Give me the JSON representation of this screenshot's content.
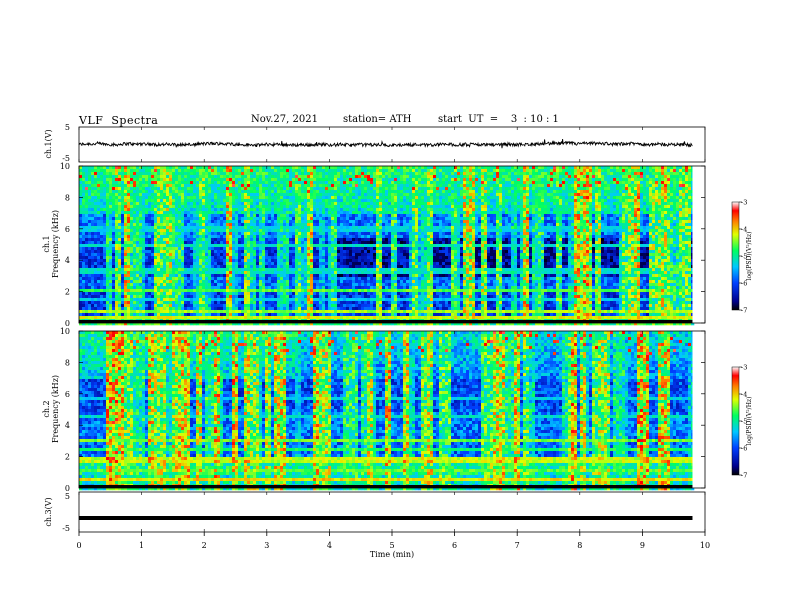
{
  "header": {
    "title": "VLF  Spectra",
    "date": "Nov.27, 2021",
    "station": "station= ATH",
    "start": "start  UT  =    3  : 10 : 1"
  },
  "chart_data": [
    {
      "type": "line",
      "ylabel": "ch.1(V)",
      "ylim": [
        -5,
        5
      ],
      "y_ticks": [
        "5",
        "-5"
      ],
      "x_range": [
        0,
        10
      ],
      "description_level": 0.0
    },
    {
      "type": "heatmap",
      "ylabel_top": "ch.1",
      "ylabel": "Frequency  (kHz)",
      "ylim": [
        0,
        10
      ],
      "y_ticks": [
        "0",
        "2",
        "4",
        "6",
        "8",
        "10"
      ],
      "xlim": [
        0,
        10
      ],
      "colorbar": {
        "label": "log(PSD)(V²/Hz)",
        "range": [
          -7,
          -3
        ],
        "ticks": [
          "-3",
          "-4",
          "-5",
          "-6",
          "-7"
        ]
      }
    },
    {
      "type": "heatmap",
      "ylabel_top": "ch.2",
      "ylabel": "Frequency  (kHz)",
      "ylim": [
        0,
        10
      ],
      "y_ticks": [
        "0",
        "2",
        "4",
        "6",
        "8",
        "10"
      ],
      "xlim": [
        0,
        10
      ],
      "colorbar": {
        "label": "log(PSD)(V²/Hz)",
        "range": [
          -7,
          -3
        ],
        "ticks": [
          "-3",
          "-4",
          "-5",
          "-6",
          "-7"
        ]
      }
    },
    {
      "type": "line",
      "ylabel": "ch.3(V)",
      "ylim": [
        -5,
        5
      ],
      "y_ticks": [
        "5",
        "-5"
      ],
      "level": -1.5,
      "x_range": [
        0,
        9.8
      ]
    }
  ],
  "x_axis": {
    "label": "Time  (min)",
    "ticks": [
      "0",
      "1",
      "2",
      "3",
      "4",
      "5",
      "6",
      "7",
      "8",
      "9",
      "10"
    ],
    "xlim": [
      0,
      10
    ]
  }
}
